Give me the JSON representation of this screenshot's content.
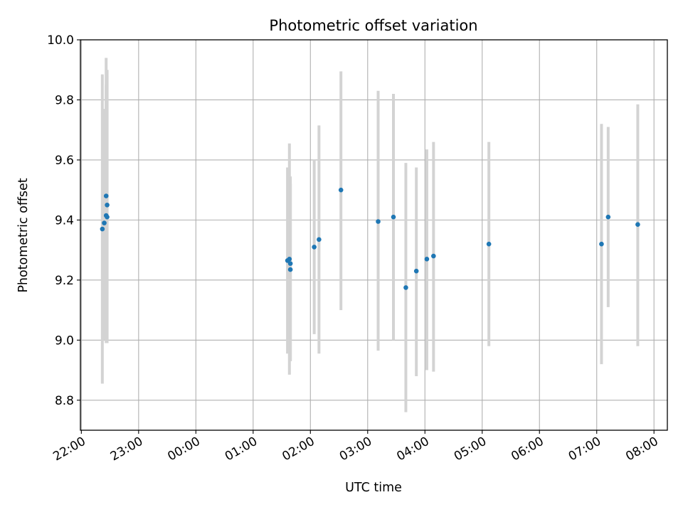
{
  "chart_data": {
    "type": "scatter",
    "title": "Photometric offset variation",
    "xlabel": "UTC time",
    "ylabel": "Photometric offset",
    "xlim": [
      "2024-01-01 21:59",
      "2024-01-02 08:14"
    ],
    "ylim": [
      8.7,
      10.0
    ],
    "grid": true,
    "x_tick_labels": [
      "22:00",
      "23:00",
      "00:00",
      "01:00",
      "02:00",
      "03:00",
      "04:00",
      "05:00",
      "06:00",
      "07:00",
      "08:00"
    ],
    "x_tick_values": [
      "2024-01-01 22:00",
      "2024-01-01 23:00",
      "2024-01-02 00:00",
      "2024-01-02 01:00",
      "2024-01-02 02:00",
      "2024-01-02 03:00",
      "2024-01-02 04:00",
      "2024-01-02 05:00",
      "2024-01-02 06:00",
      "2024-01-02 07:00",
      "2024-01-02 08:00"
    ],
    "y_tick_labels": [
      "8.8",
      "9.0",
      "9.2",
      "9.4",
      "9.6",
      "9.8",
      "10.0"
    ],
    "y_tick_values": [
      8.8,
      9.0,
      9.2,
      9.4,
      9.6,
      9.8,
      10.0
    ],
    "marker_color": "#1f77b4",
    "errorbar_color": "#d3d3d3",
    "points": [
      {
        "x": "2024-01-01 22:22",
        "y": 9.37,
        "ylow": 8.855,
        "yhigh": 9.885
      },
      {
        "x": "2024-01-01 22:24",
        "y": 9.39,
        "ylow": 9.0,
        "yhigh": 9.77
      },
      {
        "x": "2024-01-01 22:26",
        "y": 9.48,
        "ylow": 8.99,
        "yhigh": 9.94
      },
      {
        "x": "2024-01-01 22:26",
        "y": 9.415,
        "ylow": 9.0,
        "yhigh": 9.85
      },
      {
        "x": "2024-01-01 22:27",
        "y": 9.45,
        "ylow": 8.99,
        "yhigh": 9.9
      },
      {
        "x": "2024-01-01 22:27",
        "y": 9.41,
        "ylow": 9.0,
        "yhigh": 9.88
      },
      {
        "x": "2024-01-02 01:36",
        "y": 9.265,
        "ylow": 8.955,
        "yhigh": 9.575
      },
      {
        "x": "2024-01-02 01:38",
        "y": 9.27,
        "ylow": 8.885,
        "yhigh": 9.655
      },
      {
        "x": "2024-01-02 01:39",
        "y": 9.255,
        "ylow": 8.93,
        "yhigh": 9.545
      },
      {
        "x": "2024-01-02 01:39",
        "y": 9.235,
        "ylow": 8.93,
        "yhigh": 9.52
      },
      {
        "x": "2024-01-02 02:04",
        "y": 9.31,
        "ylow": 9.02,
        "yhigh": 9.6
      },
      {
        "x": "2024-01-02 02:09",
        "y": 9.335,
        "ylow": 8.955,
        "yhigh": 9.715
      },
      {
        "x": "2024-01-02 02:32",
        "y": 9.5,
        "ylow": 9.1,
        "yhigh": 9.895
      },
      {
        "x": "2024-01-02 03:11",
        "y": 9.395,
        "ylow": 8.965,
        "yhigh": 9.83
      },
      {
        "x": "2024-01-02 03:27",
        "y": 9.41,
        "ylow": 9.0,
        "yhigh": 9.82
      },
      {
        "x": "2024-01-02 03:40",
        "y": 9.175,
        "ylow": 8.76,
        "yhigh": 9.59
      },
      {
        "x": "2024-01-02 03:51",
        "y": 9.23,
        "ylow": 8.88,
        "yhigh": 9.575
      },
      {
        "x": "2024-01-02 04:02",
        "y": 9.27,
        "ylow": 8.9,
        "yhigh": 9.635
      },
      {
        "x": "2024-01-02 04:09",
        "y": 9.28,
        "ylow": 8.895,
        "yhigh": 9.66
      },
      {
        "x": "2024-01-02 05:07",
        "y": 9.32,
        "ylow": 8.98,
        "yhigh": 9.66
      },
      {
        "x": "2024-01-02 07:05",
        "y": 9.32,
        "ylow": 8.92,
        "yhigh": 9.72
      },
      {
        "x": "2024-01-02 07:12",
        "y": 9.41,
        "ylow": 9.11,
        "yhigh": 9.71
      },
      {
        "x": "2024-01-02 07:43",
        "y": 9.385,
        "ylow": 8.98,
        "yhigh": 9.785
      }
    ]
  }
}
